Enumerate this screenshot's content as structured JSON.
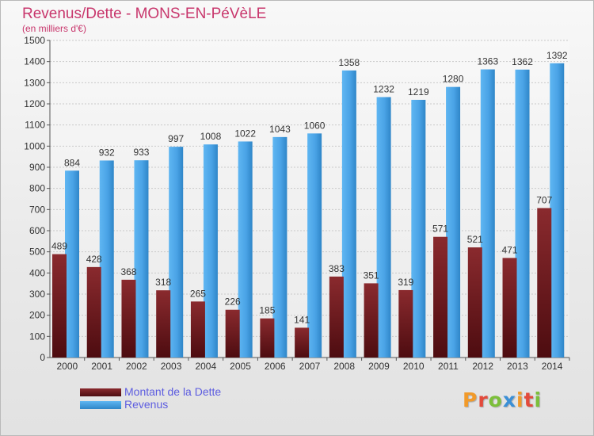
{
  "title": "Revenus/Dette - MONS-EN-PéVèLE",
  "subtitle": "(en milliers d'€)",
  "brand": "Proxiti",
  "chart_data": {
    "type": "bar",
    "title": "Revenus/Dette - MONS-EN-PéVèLE",
    "subtitle": "(en milliers d'€)",
    "categories": [
      "2000",
      "2001",
      "2002",
      "2003",
      "2004",
      "2005",
      "2006",
      "2007",
      "2008",
      "2009",
      "2010",
      "2011",
      "2012",
      "2013",
      "2014"
    ],
    "series": [
      {
        "name": "Montant de la Dette",
        "color": "#7a1f22",
        "values": [
          489,
          428,
          368,
          318,
          265,
          226,
          185,
          141,
          383,
          351,
          319,
          571,
          521,
          471,
          707
        ]
      },
      {
        "name": "Revenus",
        "color": "#4aa3e6",
        "values": [
          884,
          932,
          933,
          997,
          1008,
          1022,
          1043,
          1060,
          1358,
          1232,
          1219,
          1280,
          1363,
          1362,
          1392
        ]
      }
    ],
    "ylim": [
      0,
      1500
    ],
    "yticks": [
      0,
      100,
      200,
      300,
      400,
      500,
      600,
      700,
      800,
      900,
      1000,
      1100,
      1200,
      1300,
      1400,
      1500
    ],
    "grid": true,
    "legend_position": "bottom-left"
  }
}
